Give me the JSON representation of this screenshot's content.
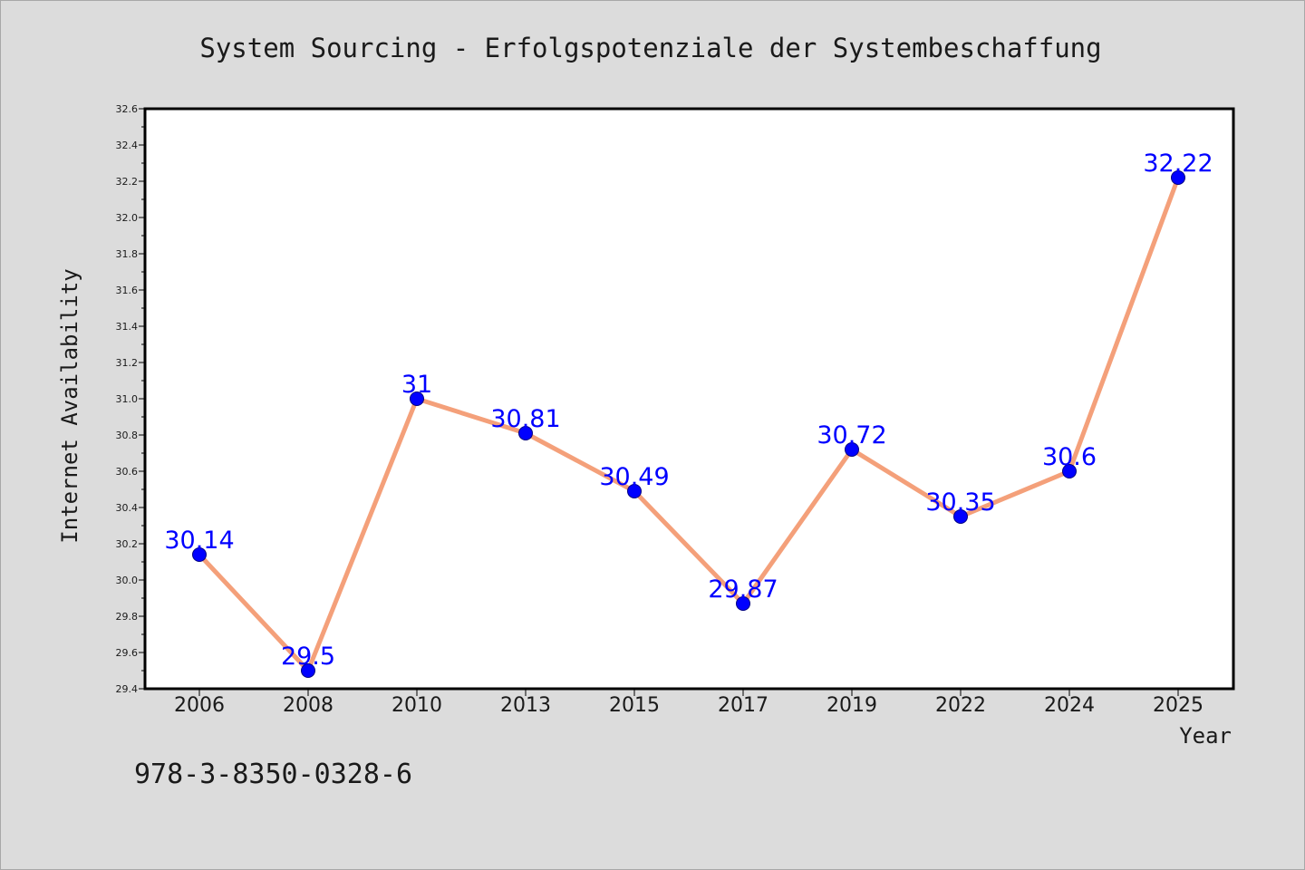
{
  "chart_data": {
    "type": "line",
    "title": "System Sourcing - Erfolgspotenziale der Systembeschaffung",
    "xlabel": "Year",
    "ylabel": "Internet Availability",
    "categories": [
      "2006",
      "2008",
      "2010",
      "2013",
      "2015",
      "2017",
      "2019",
      "2022",
      "2024",
      "2025"
    ],
    "series": [
      {
        "values": [
          30.14,
          29.5,
          31,
          30.81,
          30.49,
          29.87,
          30.72,
          30.35,
          30.6,
          32.22
        ],
        "labels": [
          "30.14",
          "29.5",
          "31",
          "30.81",
          "30.49",
          "29.87",
          "30.72",
          "30.35",
          "30.6",
          "32.22"
        ],
        "line_color": "#f4a07a",
        "marker_color": "#0000ff",
        "label_color": "#0000ff"
      }
    ],
    "ylim": [
      29.4,
      32.6
    ],
    "yticks": [
      "29.4",
      "29.6",
      "29.8",
      "30.0",
      "30.2",
      "30.4",
      "30.6",
      "30.8",
      "31.0",
      "31.2",
      "31.4",
      "31.6",
      "31.8",
      "32.0",
      "32.2",
      "32.4",
      "32.6"
    ],
    "grid": false,
    "legend": "none"
  },
  "footer": {
    "isbn": "978-3-8350-0328-6"
  },
  "colors": {
    "background": "#dcdcdc",
    "plot_background": "#ffffff",
    "axis": "#000000"
  }
}
